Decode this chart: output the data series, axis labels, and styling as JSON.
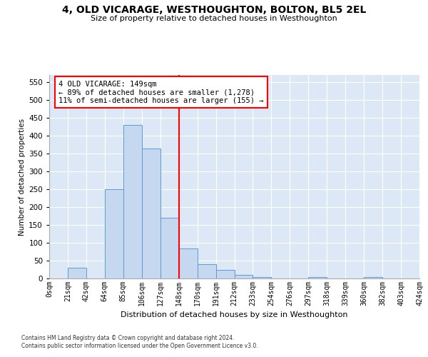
{
  "title": "4, OLD VICARAGE, WESTHOUGHTON, BOLTON, BL5 2EL",
  "subtitle": "Size of property relative to detached houses in Westhoughton",
  "xlabel": "Distribution of detached houses by size in Westhoughton",
  "ylabel": "Number of detached properties",
  "footer1": "Contains HM Land Registry data © Crown copyright and database right 2024.",
  "footer2": "Contains public sector information licensed under the Open Government Licence v3.0.",
  "bin_labels": [
    "0sqm",
    "21sqm",
    "42sqm",
    "64sqm",
    "85sqm",
    "106sqm",
    "127sqm",
    "148sqm",
    "170sqm",
    "191sqm",
    "212sqm",
    "233sqm",
    "254sqm",
    "276sqm",
    "297sqm",
    "318sqm",
    "339sqm",
    "360sqm",
    "382sqm",
    "403sqm",
    "424sqm"
  ],
  "bar_values": [
    0,
    30,
    0,
    250,
    430,
    365,
    170,
    85,
    40,
    25,
    10,
    5,
    0,
    0,
    5,
    0,
    0,
    5,
    0,
    0
  ],
  "bar_color": "#c5d8f0",
  "bar_edge_color": "#5b9bd5",
  "red_line_bin_index": 7,
  "annotation_line1": "4 OLD VICARAGE: 149sqm",
  "annotation_line2": "← 89% of detached houses are smaller (1,278)",
  "annotation_line3": "11% of semi-detached houses are larger (155) →",
  "ylim_max": 570,
  "ytick_step": 50,
  "bg_color": "#dce8f5",
  "grid_color": "#ffffff",
  "title_fontsize": 10,
  "subtitle_fontsize": 8,
  "xlabel_fontsize": 8,
  "ylabel_fontsize": 7.5,
  "tick_fontsize": 7,
  "annotation_fontsize": 7.5,
  "footer_fontsize": 5.5
}
